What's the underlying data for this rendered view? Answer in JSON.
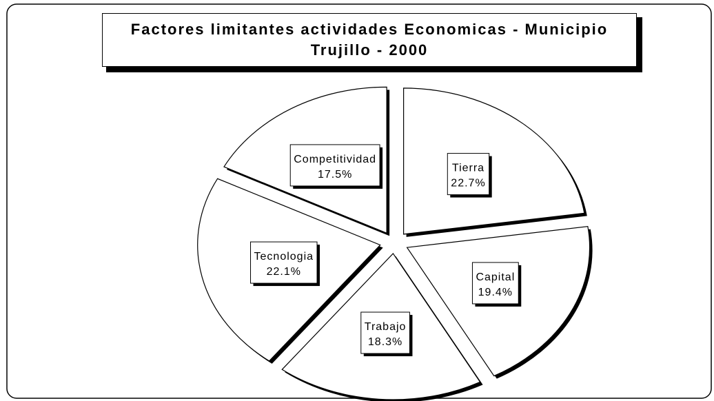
{
  "chart_data": {
    "type": "pie",
    "title": "Factores limitantes actividades Economicas - Municipio Trujillo - 2000",
    "categories": [
      "Tierra",
      "Capital",
      "Trabajo",
      "Tecnologia",
      "Competitividad"
    ],
    "values": [
      22.7,
      19.4,
      18.3,
      22.1,
      17.5
    ],
    "value_labels": [
      "22.7%",
      "19.4%",
      "18.3%",
      "22.1%",
      "17.5%"
    ],
    "color": "#ffffff"
  }
}
